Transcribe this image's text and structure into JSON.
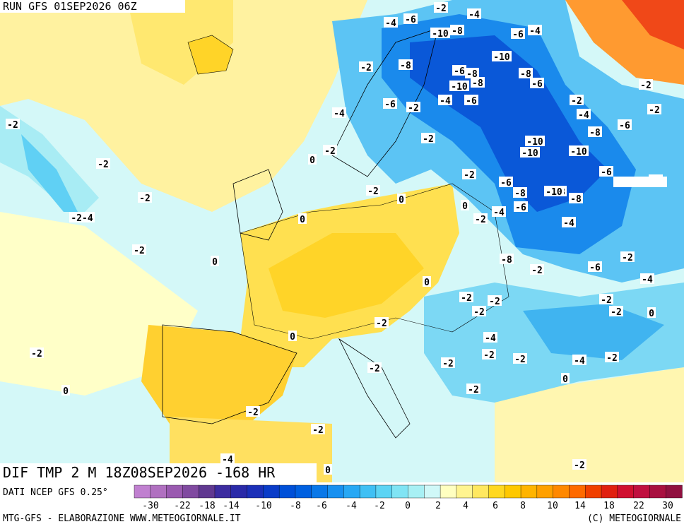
{
  "header": {
    "run": "RUN GFS 01SEP2026 06Z"
  },
  "map": {
    "field": "DIF TMP 2 M 18Z08SEP2026 -168 HR",
    "labels": [
      "-2",
      "-4",
      "-6",
      "-10",
      "-8",
      "-4",
      "-6",
      "-4",
      "-2",
      "-8",
      "-10",
      "-8",
      "-6",
      "-6",
      "-8",
      "-10",
      "-8",
      "-6",
      "-4",
      "-6",
      "-2",
      "-4",
      "-2",
      "-2",
      "-4",
      "-6",
      "-2",
      "-8",
      "-6",
      "-2",
      "-10",
      "-10",
      "-10",
      "-8",
      "-2",
      "0",
      "-2",
      "-2",
      "-2",
      "-2",
      "-2-4",
      "-2",
      "0",
      "-2",
      "-6",
      "-8",
      "-10",
      "-6",
      "-4",
      "-8",
      "0",
      "-4",
      "-2",
      "-8",
      "-6",
      "-2",
      "-2",
      "0",
      "0",
      "-2",
      "-2",
      "-2",
      "-4",
      "-2",
      "0",
      "-2",
      "0",
      "-2",
      "0",
      "-4",
      "-2",
      "-2",
      "-2",
      "-4",
      "-2",
      "0",
      "-2",
      "0",
      "-2",
      "-2",
      "-2",
      "-2",
      "-4",
      "0",
      "-2",
      "-2"
    ]
  },
  "footer": {
    "source": "DATI NCEP GFS 0.25°",
    "credit": "MTG-GFS - ELABORAZIONE WWW.METEOGIORNALE.IT",
    "copyright": "(C) METEOGIORNALE"
  },
  "colorbar": {
    "colors": [
      "#c080d0",
      "#b070c0",
      "#9a5ab0",
      "#804aa0",
      "#603890",
      "#3c2ca0",
      "#2a2aa8",
      "#1c30b8",
      "#0a3cc8",
      "#0050d8",
      "#0060e0",
      "#0a78e8",
      "#1890f0",
      "#28a8f4",
      "#40c0f4",
      "#5cd4f4",
      "#80e4f4",
      "#a8f0f4",
      "#d0f8f8",
      "#ffffc0",
      "#fff490",
      "#ffe860",
      "#ffd820",
      "#ffc800",
      "#ffb400",
      "#ffa000",
      "#ff8800",
      "#ff6a00",
      "#f04000",
      "#e02010",
      "#d01030",
      "#c01040",
      "#a81040",
      "#901040"
    ],
    "labels": [
      "-30",
      "-22",
      "-18",
      "-14",
      "-10",
      "-8",
      "-6",
      "-4",
      "-2",
      "0",
      "2",
      "4",
      "6",
      "8",
      "10",
      "14",
      "18",
      "22",
      "30"
    ]
  }
}
